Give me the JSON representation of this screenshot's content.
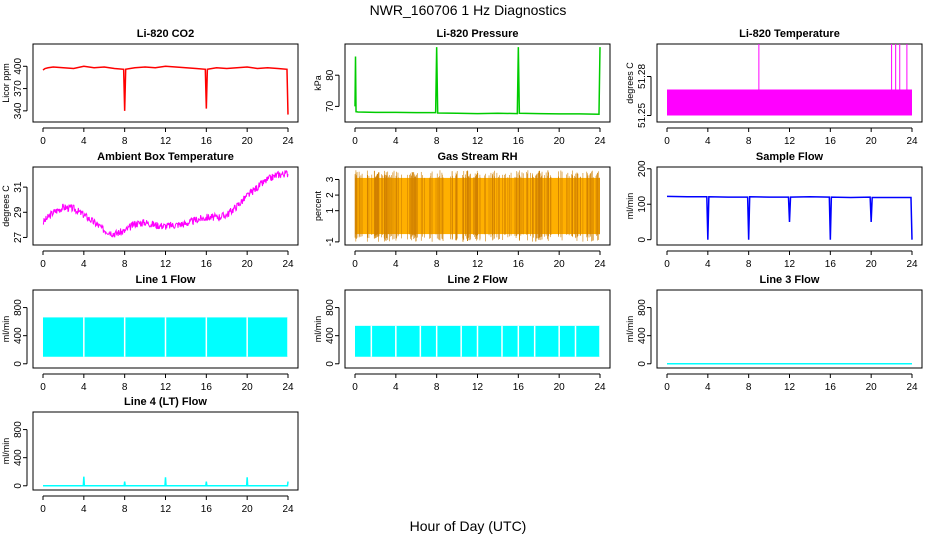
{
  "title": "NWR_160706  1 Hz Diagnostics",
  "xlabel": "Hour of Day (UTC)",
  "chart_data": [
    {
      "type": "line",
      "title": "Li-820 CO2",
      "ylabel": "Licor ppm",
      "color": "#ff0000",
      "xlim": [
        0,
        24
      ],
      "ylim": [
        325,
        430
      ],
      "yticks": [
        340,
        370,
        400
      ],
      "xticks": [
        0,
        4,
        8,
        12,
        16,
        20,
        24
      ],
      "series": [
        {
          "x": [
            0,
            0.2,
            0.5,
            1,
            2,
            3,
            4,
            5,
            6,
            7,
            7.9,
            8,
            8.1,
            9,
            10,
            11,
            12,
            13,
            14,
            15,
            15.9,
            16,
            16.1,
            17,
            18,
            19,
            20,
            21,
            22,
            23,
            23.9,
            24
          ],
          "y": [
            395,
            397,
            398,
            399,
            398,
            397,
            400,
            398,
            399,
            397,
            396,
            340,
            396,
            398,
            399,
            398,
            400,
            399,
            398,
            397,
            396,
            343,
            396,
            398,
            397,
            398,
            399,
            397,
            398,
            397,
            396,
            335
          ]
        }
      ]
    },
    {
      "type": "line",
      "title": "Li-820 Pressure",
      "ylabel": "kPa",
      "color": "#00cc00",
      "xlim": [
        0,
        24
      ],
      "ylim": [
        65,
        90
      ],
      "yticks": [
        70,
        80
      ],
      "xticks": [
        0,
        4,
        8,
        12,
        16,
        20,
        24
      ],
      "series": [
        {
          "x": [
            0,
            0.05,
            0.1,
            0.3,
            2,
            4,
            6,
            7.9,
            8,
            8.1,
            10,
            12,
            14,
            15.9,
            16,
            16.1,
            18,
            20,
            22,
            23.9,
            24
          ],
          "y": [
            70,
            86,
            68.3,
            68.2,
            68.1,
            68.1,
            68,
            68,
            89,
            67.9,
            67.8,
            67.7,
            67.8,
            67.7,
            89,
            67.8,
            67.7,
            67.6,
            67.6,
            67.5,
            89
          ]
        }
      ]
    },
    {
      "type": "area",
      "title": "Li-820 Temperature",
      "ylabel": "degrees C",
      "color": "#ff00ff",
      "xlim": [
        0,
        24
      ],
      "ylim": [
        51.245,
        51.305
      ],
      "yticks": [
        51.25,
        51.28
      ],
      "xticks": [
        0,
        4,
        8,
        12,
        16,
        20,
        24
      ],
      "band": [
        51.25,
        51.27
      ],
      "spikes": [
        9,
        22,
        22.4,
        22.8,
        23.5
      ]
    },
    {
      "type": "line",
      "title": "Ambient Box Temperature",
      "ylabel": "degrees C",
      "color": "#ff00ff",
      "xlim": [
        0,
        24
      ],
      "ylim": [
        26.4,
        32.6
      ],
      "yticks": [
        27,
        29,
        31
      ],
      "xticks": [
        0,
        4,
        8,
        12,
        16,
        20,
        24
      ],
      "series": [
        {
          "x": [
            0,
            1,
            2,
            3,
            4,
            5,
            6,
            7,
            8,
            9,
            10,
            11,
            12,
            13,
            14,
            15,
            16,
            17,
            18,
            19,
            20,
            21,
            22,
            23,
            24
          ],
          "y": [
            28.2,
            29,
            29.4,
            29.3,
            28.8,
            28.2,
            27.6,
            27.3,
            27.5,
            28.1,
            28.2,
            28,
            27.9,
            28,
            28.1,
            28.4,
            28.6,
            28.6,
            28.8,
            29.5,
            30.3,
            31,
            31.6,
            32,
            32.1
          ]
        }
      ],
      "noise": 0.6
    },
    {
      "type": "area",
      "title": "Gas Stream RH",
      "ylabel": "percent",
      "color": "#ffb000",
      "xlim": [
        0,
        24
      ],
      "ylim": [
        -1.2,
        3.8
      ],
      "yticks": [
        -1,
        1,
        2,
        3
      ],
      "xticks": [
        0,
        4,
        8,
        12,
        16,
        20,
        24
      ],
      "band": [
        -0.5,
        3.1
      ]
    },
    {
      "type": "line",
      "title": "Sample Flow",
      "ylabel": "ml/min",
      "color": "#0000ff",
      "xlim": [
        0,
        24
      ],
      "ylim": [
        -15,
        205
      ],
      "yticks": [
        0,
        100,
        200
      ],
      "xticks": [
        0,
        4,
        8,
        12,
        16,
        20,
        24
      ],
      "series": [
        {
          "x": [
            0,
            2,
            3.9,
            4,
            4.1,
            6,
            7.9,
            8,
            8.1,
            10,
            11.9,
            12,
            12.1,
            14,
            15.9,
            16,
            16.1,
            18,
            19.9,
            20,
            20.1,
            22,
            23.9,
            24
          ],
          "y": [
            122,
            121,
            121,
            0,
            121,
            120,
            120,
            0,
            121,
            120,
            120,
            50,
            120,
            121,
            120,
            0,
            120,
            119,
            120,
            50,
            119,
            119,
            119,
            0
          ]
        }
      ]
    },
    {
      "type": "area",
      "title": "Line 1 Flow",
      "ylabel": "ml/min",
      "color": "#00ffff",
      "xlim": [
        0,
        24
      ],
      "ylim": [
        -60,
        1050
      ],
      "yticks": [
        0,
        400,
        800
      ],
      "xticks": [
        0,
        4,
        8,
        12,
        16,
        20,
        24
      ],
      "band": [
        100,
        660
      ],
      "gaps": [
        4,
        8,
        12,
        16,
        20,
        24
      ]
    },
    {
      "type": "area",
      "title": "Line 2 Flow",
      "ylabel": "ml/min",
      "color": "#00ffff",
      "xlim": [
        0,
        24
      ],
      "ylim": [
        -60,
        1050
      ],
      "yticks": [
        0,
        400,
        800
      ],
      "xticks": [
        0,
        4,
        8,
        12,
        16,
        20,
        24
      ],
      "band": [
        100,
        540
      ],
      "gaps": [
        1.6,
        4,
        6.4,
        8,
        10.4,
        12,
        14.4,
        16,
        17.6,
        20,
        21.6,
        24
      ]
    },
    {
      "type": "line",
      "title": "Line 3 Flow",
      "ylabel": "ml/min",
      "color": "#00ffff",
      "xlim": [
        0,
        24
      ],
      "ylim": [
        -60,
        1050
      ],
      "yticks": [
        0,
        400,
        800
      ],
      "xticks": [
        0,
        4,
        8,
        12,
        16,
        20,
        24
      ],
      "series": [
        {
          "x": [
            0,
            24
          ],
          "y": [
            0,
            0
          ]
        }
      ]
    },
    {
      "type": "line",
      "title": "Line 4 (LT) Flow",
      "ylabel": "ml/min",
      "color": "#00ffff",
      "xlim": [
        0,
        24
      ],
      "ylim": [
        -60,
        1050
      ],
      "yticks": [
        0,
        400,
        800
      ],
      "xticks": [
        0,
        4,
        8,
        12,
        16,
        20,
        24
      ],
      "series": [
        {
          "x": [
            0,
            3.95,
            4,
            4.05,
            7.95,
            8,
            8.05,
            11.95,
            12,
            12.05,
            15.95,
            16,
            16.05,
            19.95,
            20,
            20.05,
            23.95,
            24
          ],
          "y": [
            0,
            0,
            130,
            0,
            0,
            60,
            0,
            0,
            120,
            0,
            0,
            60,
            0,
            0,
            120,
            0,
            0,
            60
          ]
        }
      ]
    }
  ]
}
